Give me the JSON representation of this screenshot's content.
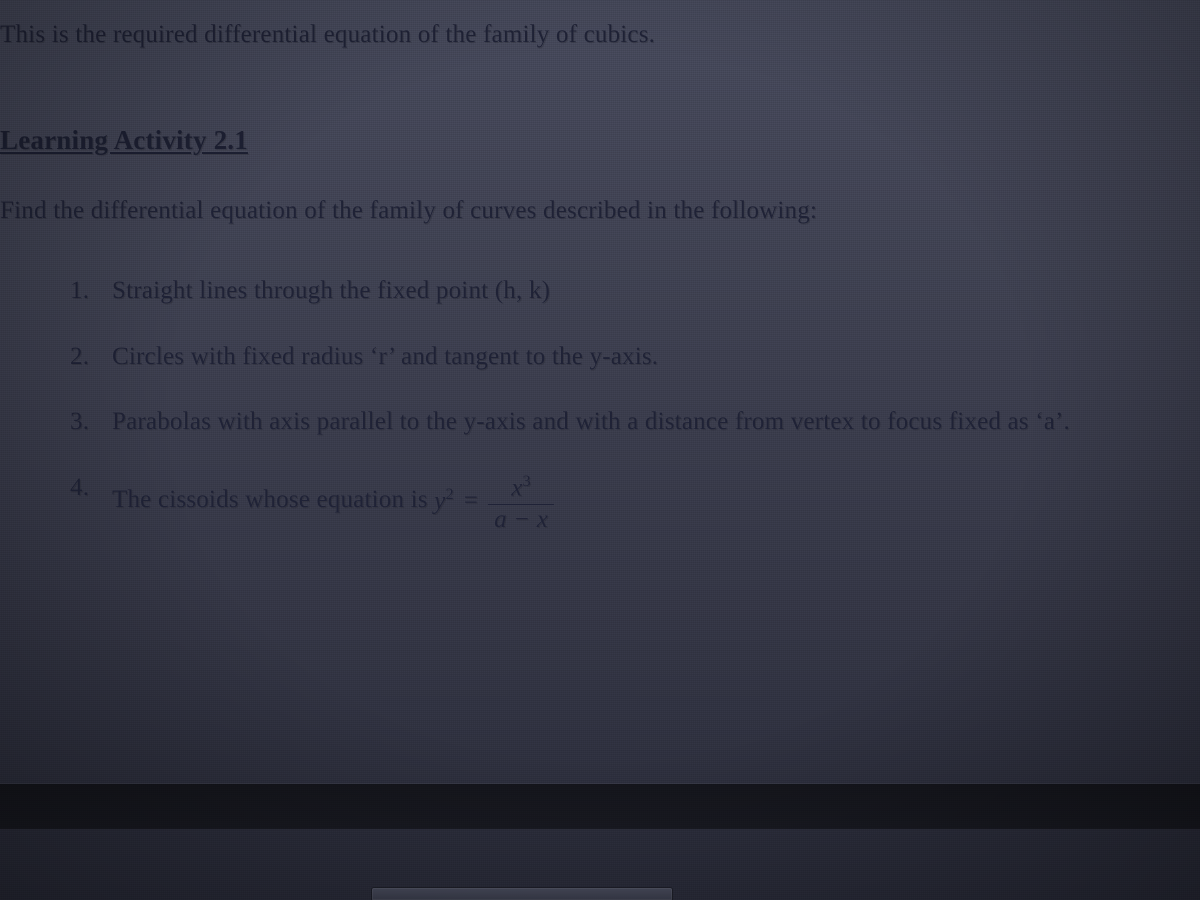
{
  "colors": {
    "text": "#1f2236",
    "bg_top": "#474a5c",
    "bg_bottom": "#2a2c3a",
    "strip": "#141722"
  },
  "typography": {
    "family": "Times New Roman, serif",
    "body_size_pt": 19,
    "heading_size_pt": 20,
    "heading_weight": 700
  },
  "intro": "This is the required differential equation of the family of cubics.",
  "heading": "Learning Activity 2.1",
  "instruction": "Find the differential equation of the family of curves described in the following:",
  "items": [
    {
      "num": "1.",
      "text": "Straight lines through the fixed point (h, k)"
    },
    {
      "num": "2.",
      "text": "Circles with fixed radius ‘r’ and tangent to the y-axis."
    },
    {
      "num": "3.",
      "text": "Parabolas with axis parallel to the y-axis and with a distance from vertex to focus fixed as ‘a’."
    },
    {
      "num": "4.",
      "text_prefix": "The cissoids whose equation is ",
      "equation": {
        "lhs": "y",
        "lhs_exp": "2",
        "equals": "=",
        "num": "x",
        "num_exp": "3",
        "den": "a − x"
      }
    }
  ]
}
